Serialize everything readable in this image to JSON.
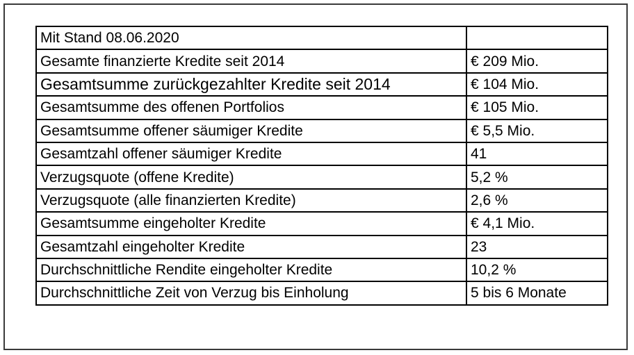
{
  "table": {
    "rows": [
      {
        "label": "Mit Stand 08.06.2020",
        "value": ""
      },
      {
        "label": "Gesamte finanzierte Kredite seit 2014",
        "value": "€ 209 Mio."
      },
      {
        "label": "Gesamtsumme zurückgezahlter Kredite seit 2014",
        "value": "€ 104 Mio."
      },
      {
        "label": "Gesamtsumme des offenen Portfolios",
        "value": "€ 105 Mio."
      },
      {
        "label": "Gesamtsumme offener säumiger Kredite",
        "value": "€ 5,5 Mio."
      },
      {
        "label": "Gesamtzahl offener säumiger Kredite",
        "value": "41"
      },
      {
        "label": "Verzugsquote (offene Kredite)",
        "value": "5,2 %"
      },
      {
        "label": "Verzugsquote (alle finanzierten Kredite)",
        "value": "2,6 %"
      },
      {
        "label": "Gesamtsumme eingeholter Kredite",
        "value": "€ 4,1 Mio."
      },
      {
        "label": "Gesamtzahl eingeholter Kredite",
        "value": "23"
      },
      {
        "label": "Durchschnittliche Rendite eingeholter Kredite",
        "value": "10,2 %"
      },
      {
        "label": "Durchschnittliche Zeit von Verzug bis Einholung",
        "value": "5 bis 6 Monate"
      }
    ]
  }
}
